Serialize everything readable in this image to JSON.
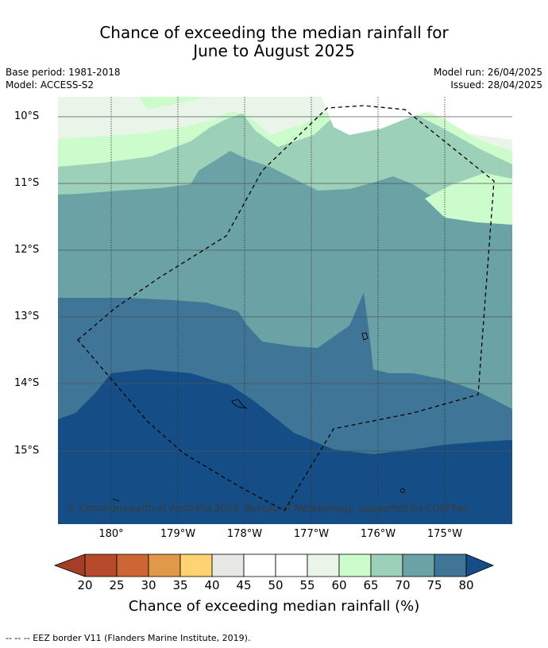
{
  "header": {
    "title_line1": "Chance of exceeding the median rainfall for",
    "title_line2": "June to August 2025",
    "base_period": "Base period: 1981-2018",
    "model": "Model: ACCESS-S2",
    "model_run": "Model run: 26/04/2025",
    "issued": "Issued: 28/04/2025"
  },
  "map": {
    "lat_labels": [
      "10°S",
      "11°S",
      "12°S",
      "13°S",
      "14°S",
      "15°S"
    ],
    "lon_labels": [
      "180°",
      "179°W",
      "178°W",
      "177°W",
      "176°W",
      "175°W"
    ],
    "copyright": "© Commonwealth of Australia 2025, Bureau of Meteorology, supported by COSPPac",
    "colors": {
      "c55_60": "#eaf5ea",
      "c60_65": "#ccfccc",
      "c65_70": "#9dd0b9",
      "c70_75": "#6aa2a5",
      "c75_80": "#3f7596",
      "c80_plus": "#154e86",
      "c45_55": "#ffffff"
    }
  },
  "colorbar": {
    "ticks": [
      "20",
      "25",
      "30",
      "35",
      "40",
      "45",
      "50",
      "55",
      "60",
      "65",
      "70",
      "75",
      "80"
    ],
    "colors": [
      "#a43e27",
      "#b64a2a",
      "#cc6634",
      "#e29849",
      "#ffd272",
      "#e7e7e3",
      "#ffffff",
      "#ffffff",
      "#eaf5ea",
      "#ccfccc",
      "#9dd0b9",
      "#6aa2a5",
      "#3f7596",
      "#154e86"
    ],
    "label": "Chance of exceeding median rainfall (%)"
  },
  "footnote": "--  --  -- EEZ border V11 (Flanders Marine Institute, 2019)."
}
